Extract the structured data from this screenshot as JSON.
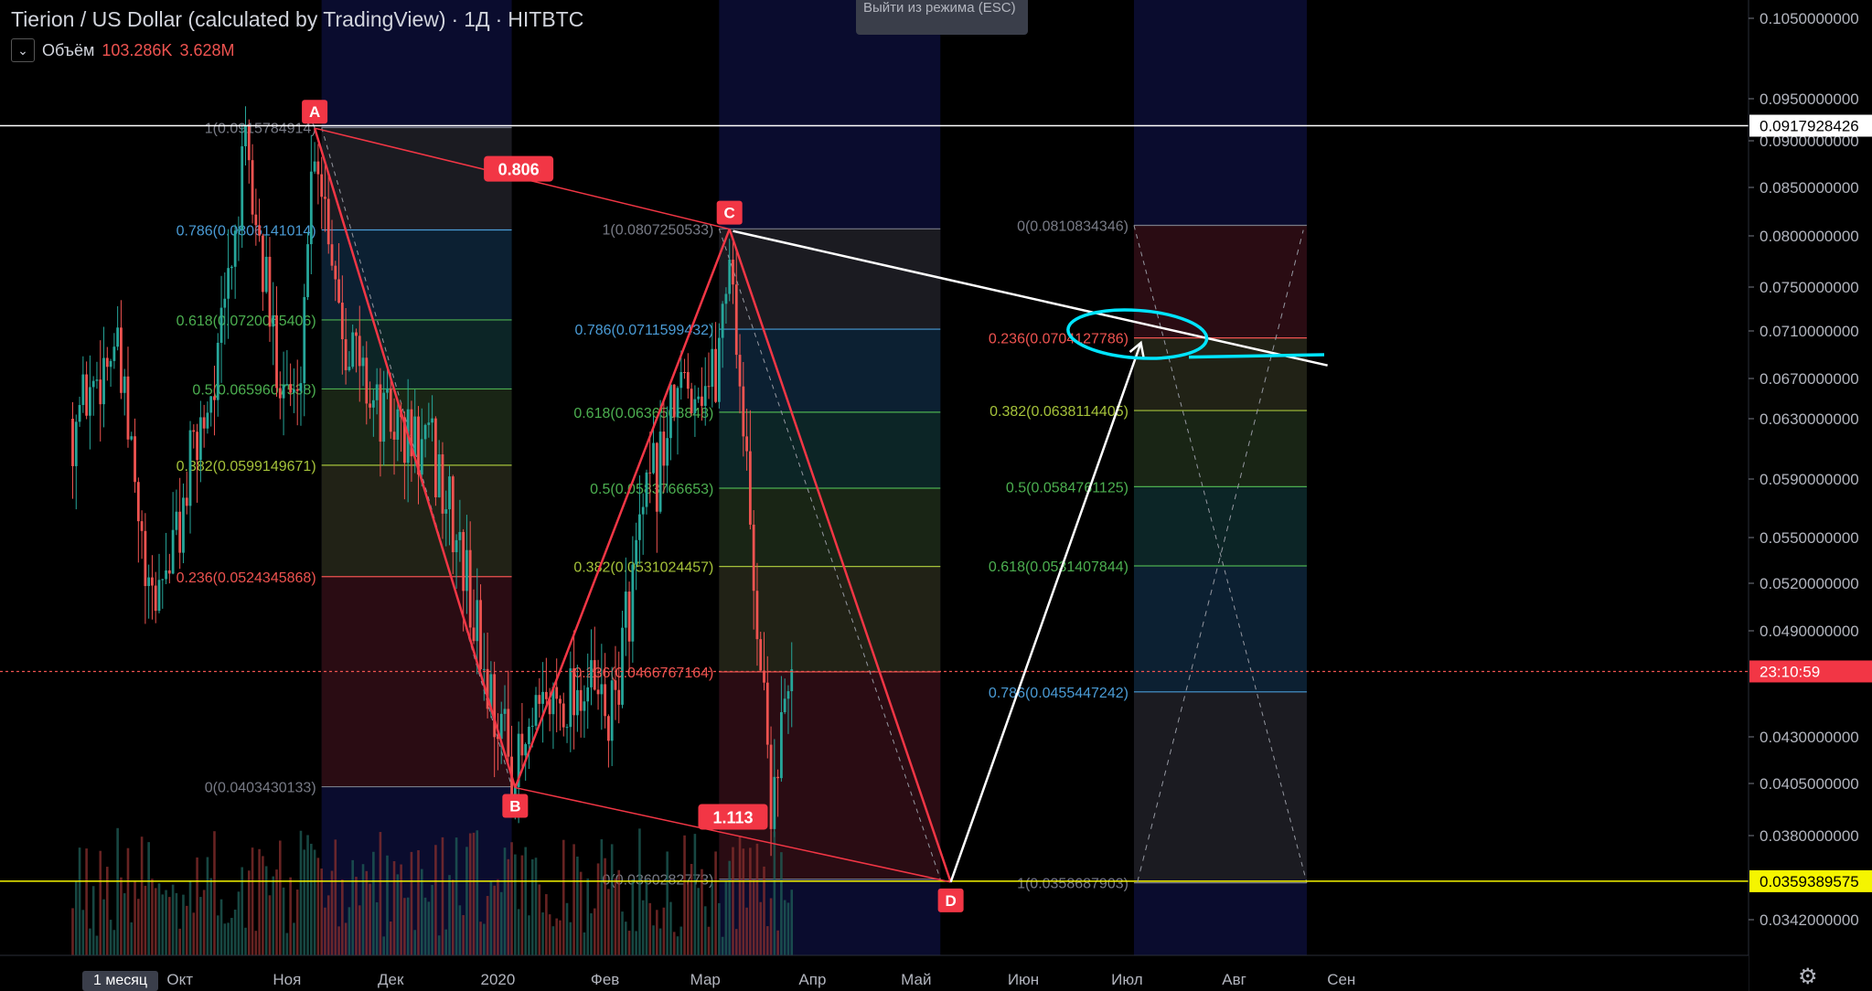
{
  "header": {
    "title": "Tierion / US Dollar (calculated by TradingView)",
    "interval": "1Д",
    "exchange": "HITBTC",
    "volume_label": "Объём",
    "volume_value_1": "103.286K",
    "volume_value_2": "3.628M",
    "exit_button": "Выйти из режима (ESC)",
    "timeframe_button": "1 месяц"
  },
  "colors": {
    "background": "#000000",
    "up": "#26a69a",
    "down": "#ef5350",
    "pattern": "#f23645",
    "white_line": "#ffffff",
    "yellow_line": "#f5f500",
    "cyan_mark": "#00e5ff"
  },
  "chart_data": {
    "type": "candlestick",
    "y_axis": {
      "ylim": [
        0.0328,
        0.107
      ],
      "tick_labels": [
        "0.1050000000",
        "0.0950000000",
        "0.0900000000",
        "0.0850000000",
        "0.0800000000",
        "0.0750000000",
        "0.0710000000",
        "0.0670000000",
        "0.0630000000",
        "0.0590000000",
        "0.0550000000",
        "0.0520000000",
        "0.0490000000",
        "0.0430000000",
        "0.0405000000",
        "0.0380000000",
        "0.0342000000"
      ],
      "tick_values": [
        0.105,
        0.095,
        0.09,
        0.085,
        0.08,
        0.075,
        0.071,
        0.067,
        0.063,
        0.059,
        0.055,
        0.052,
        0.049,
        0.043,
        0.0405,
        0.038,
        0.0342
      ]
    },
    "x_axis": {
      "tick_labels": [
        "Окт",
        "Ноя",
        "Дек",
        "2020",
        "Фев",
        "Мар",
        "Апр",
        "Май",
        "Июн",
        "Июл",
        "Авг",
        "Сен"
      ],
      "tick_days": [
        31,
        62,
        92,
        123,
        154,
        183,
        214,
        244,
        275,
        305,
        336,
        367
      ],
      "date_origin": "2019-09-01"
    },
    "price_labels": [
      {
        "value": 0.0917928426,
        "text": "0.0917928426",
        "kind": "white"
      },
      {
        "value": 0.0467,
        "text": "23:10:59",
        "kind": "red"
      },
      {
        "value": 0.0359389575,
        "text": "0.0359389575",
        "kind": "yellow"
      }
    ],
    "horizontal_lines": [
      {
        "value": 0.0917928426,
        "color": "#ffffff",
        "style": "solid"
      },
      {
        "value": 0.0359389575,
        "color": "#f5f500",
        "style": "solid"
      },
      {
        "value": 0.0467,
        "color": "#ef5350",
        "style": "dotted"
      }
    ],
    "fib_retracements": [
      {
        "x_start": 72,
        "x_end": 127,
        "levels": [
          {
            "ratio": "1",
            "value": 0.0915784914,
            "label": "1(0.0915784914)",
            "color": "#787b86"
          },
          {
            "ratio": "0.786",
            "value": 0.0806141014,
            "label": "0.786(0.0806141014)",
            "color": "#4a9bd5"
          },
          {
            "ratio": "0.618",
            "value": 0.0720065406,
            "label": "0.618(0.0720065406)",
            "color": "#4caf50"
          },
          {
            "ratio": "0.5",
            "value": 0.0659607538,
            "label": "0.5(0.0659607538)",
            "color": "#4caf50"
          },
          {
            "ratio": "0.382",
            "value": 0.0599149671,
            "label": "0.382(0.0599149671)",
            "color": "#a5c23a"
          },
          {
            "ratio": "0.236",
            "value": 0.0524345868,
            "label": "0.236(0.0524345868)",
            "color": "#ef5350"
          },
          {
            "ratio": "0",
            "value": 0.0403430133,
            "label": "0(0.0403430133)",
            "color": "#787b86"
          }
        ]
      },
      {
        "x_start": 187,
        "x_end": 251,
        "levels": [
          {
            "ratio": "1",
            "value": 0.0807250533,
            "label": "1(0.0807250533)",
            "color": "#787b86"
          },
          {
            "ratio": "0.786",
            "value": 0.0711599432,
            "label": "0.786(0.0711599432)",
            "color": "#4a9bd5"
          },
          {
            "ratio": "0.618",
            "value": 0.0636508848,
            "label": "0.618(0.0636508848)",
            "color": "#4caf50"
          },
          {
            "ratio": "0.5",
            "value": 0.0583766653,
            "label": "0.5(0.0583766653)",
            "color": "#4caf50"
          },
          {
            "ratio": "0.382",
            "value": 0.0531024457,
            "label": "0.382(0.0531024457)",
            "color": "#a5c23a"
          },
          {
            "ratio": "0.236",
            "value": 0.0466767164,
            "label": "0.236(0.0466767164)",
            "color": "#ef5350"
          },
          {
            "ratio": "0",
            "value": 0.0360282773,
            "label": "0(0.0360282773)",
            "color": "#787b86"
          }
        ]
      },
      {
        "x_start": 307,
        "x_end": 357,
        "levels": [
          {
            "ratio": "0",
            "value": 0.0810834346,
            "label": "0(0.0810834346)",
            "color": "#787b86"
          },
          {
            "ratio": "0.236",
            "value": 0.0704127786,
            "label": "0.236(0.0704127786)",
            "color": "#ef5350"
          },
          {
            "ratio": "0.382",
            "value": 0.0638114405,
            "label": "0.382(0.0638114405)",
            "color": "#a5c23a"
          },
          {
            "ratio": "0.5",
            "value": 0.0584761125,
            "label": "0.5(0.0584761125)",
            "color": "#4caf50"
          },
          {
            "ratio": "0.618",
            "value": 0.0531407844,
            "label": "0.618(0.0531407844)",
            "color": "#4caf50"
          },
          {
            "ratio": "0.786",
            "value": 0.0455447242,
            "label": "0.786(0.0455447242)",
            "color": "#4a9bd5"
          },
          {
            "ratio": "1",
            "value": 0.0358687903,
            "label": "1(0.0358687903)",
            "color": "#787b86"
          }
        ]
      }
    ],
    "abcd_pattern": {
      "points": [
        {
          "label": "A",
          "x": 70,
          "y": 0.0915
        },
        {
          "label": "B",
          "x": 128,
          "y": 0.0403
        },
        {
          "label": "C",
          "x": 190,
          "y": 0.0807
        },
        {
          "label": "D",
          "x": 254,
          "y": 0.0359
        }
      ],
      "ratios": [
        {
          "text": "0.806",
          "x": 129,
          "y": 0.087
        },
        {
          "text": "1.113",
          "x": 191,
          "y": 0.0389
        }
      ]
    },
    "projection": {
      "from": {
        "x": 254,
        "y": 0.0359
      },
      "to": {
        "x": 309,
        "y": 0.07
      }
    },
    "trendline": {
      "from": {
        "x": 191,
        "y": 0.0805
      },
      "to": {
        "x": 363,
        "y": 0.0681
      }
    },
    "candles_range": {
      "x_start": 0,
      "x_end": 208
    },
    "volume_max_days": [
      70,
      76,
      180,
      190
    ]
  }
}
